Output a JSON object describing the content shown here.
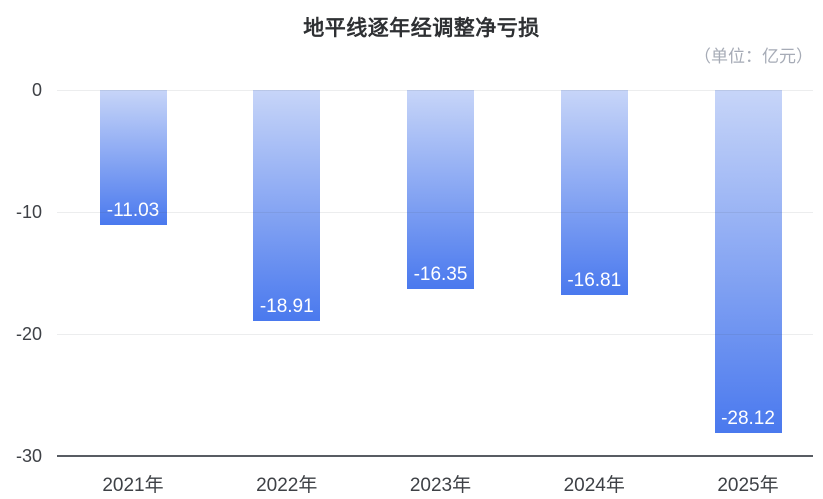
{
  "chart_data": {
    "type": "bar",
    "title": "地平线逐年经调整净亏损",
    "unit": "（单位：亿元）",
    "categories": [
      "2021年",
      "2022年",
      "2023年",
      "2024年",
      "2025年"
    ],
    "values": [
      -11.03,
      -18.91,
      -16.35,
      -16.81,
      -28.12
    ],
    "value_labels": [
      "-11.03",
      "-18.91",
      "-16.35",
      "-16.81",
      "-28.12"
    ],
    "xlabel": "",
    "ylabel": "",
    "ylim": [
      -30,
      0
    ],
    "yticks": [
      0,
      -10,
      -20,
      -30
    ],
    "grid": true,
    "legend": "none",
    "orientation": "vertical",
    "colors": {
      "grad_top": "#c7d5f8",
      "grad_bottom": "#4a79ee",
      "value_label": "#ffffff",
      "title": "#2e3033",
      "unit": "#a6abb6",
      "axis_label": "#3e4146",
      "axis_line": "#585c63",
      "grid_line": "rgba(70,75,90,0.10)"
    }
  }
}
